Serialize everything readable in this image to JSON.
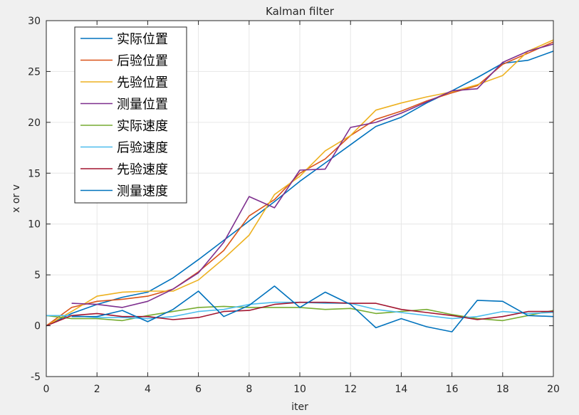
{
  "chart_data": {
    "type": "line",
    "title": "Kalman filter",
    "xlabel": "iter",
    "ylabel": "x or v",
    "xlim": [
      0,
      20
    ],
    "ylim": [
      -5,
      30
    ],
    "xticks": [
      0,
      2,
      4,
      6,
      8,
      10,
      12,
      14,
      16,
      18,
      20
    ],
    "yticks": [
      -5,
      0,
      5,
      10,
      15,
      20,
      25,
      30
    ],
    "grid": true,
    "legend_position": "top-left",
    "x": [
      0,
      1,
      2,
      3,
      4,
      5,
      6,
      7,
      8,
      9,
      10,
      11,
      12,
      13,
      14,
      15,
      16,
      17,
      18,
      19,
      20
    ],
    "series": [
      {
        "name": "实际位置",
        "color": "#0072bd",
        "values": [
          0,
          1.2,
          2.1,
          2.8,
          3.3,
          4.7,
          6.5,
          8.4,
          10.3,
          12.2,
          14.2,
          16.0,
          17.8,
          19.6,
          20.5,
          21.9,
          23.1,
          24.4,
          25.8,
          26.1,
          27.0
        ]
      },
      {
        "name": "后验位置",
        "color": "#d95319",
        "values": [
          0,
          1.8,
          2.4,
          2.6,
          2.9,
          3.6,
          5.3,
          7.4,
          10.8,
          12.4,
          15.0,
          16.4,
          18.7,
          20.3,
          21.1,
          22.1,
          22.9,
          23.6,
          25.7,
          26.8,
          27.9
        ]
      },
      {
        "name": "先验位置",
        "color": "#edb120",
        "values": [
          0,
          1.4,
          2.9,
          3.3,
          3.4,
          3.4,
          4.5,
          6.6,
          8.9,
          12.9,
          14.7,
          17.2,
          18.7,
          21.2,
          21.9,
          22.5,
          23.0,
          23.7,
          24.6,
          27.0,
          28.1
        ]
      },
      {
        "name": "测量位置",
        "color": "#7e2f8e",
        "values": [
          null,
          2.2,
          2.1,
          1.8,
          2.4,
          3.6,
          5.2,
          8.2,
          12.7,
          11.6,
          15.3,
          15.4,
          19.5,
          20.0,
          20.9,
          22.0,
          23.1,
          23.3,
          25.9,
          27.0,
          27.7
        ]
      },
      {
        "name": "实际速度",
        "color": "#77ac30",
        "values": [
          1.0,
          0.7,
          0.7,
          0.5,
          1.0,
          1.4,
          1.8,
          1.9,
          1.8,
          1.8,
          1.8,
          1.6,
          1.7,
          1.2,
          1.4,
          1.6,
          1.1,
          0.7,
          0.5,
          1.0,
          1.5
        ]
      },
      {
        "name": "后验速度",
        "color": "#4dbeee",
        "values": [
          1.0,
          1.0,
          0.8,
          0.8,
          0.7,
          0.9,
          1.4,
          1.6,
          2.1,
          2.3,
          2.3,
          2.2,
          2.2,
          1.6,
          1.3,
          1.0,
          0.7,
          0.9,
          1.4,
          1.2,
          1.3
        ]
      },
      {
        "name": "先验速度",
        "color": "#a2142f",
        "values": [
          0,
          1.0,
          1.2,
          0.9,
          0.9,
          0.6,
          0.8,
          1.4,
          1.5,
          2.1,
          2.3,
          2.3,
          2.2,
          2.2,
          1.6,
          1.3,
          1.0,
          0.6,
          0.9,
          1.4,
          1.4
        ]
      },
      {
        "name": "测量速度",
        "color": "#0072bd",
        "values": [
          null,
          0.9,
          0.9,
          1.5,
          0.4,
          1.6,
          3.4,
          0.9,
          2.0,
          3.9,
          1.8,
          3.3,
          2.1,
          -0.2,
          0.7,
          -0.1,
          -0.6,
          2.5,
          2.4,
          1.0,
          0.9
        ]
      }
    ]
  }
}
